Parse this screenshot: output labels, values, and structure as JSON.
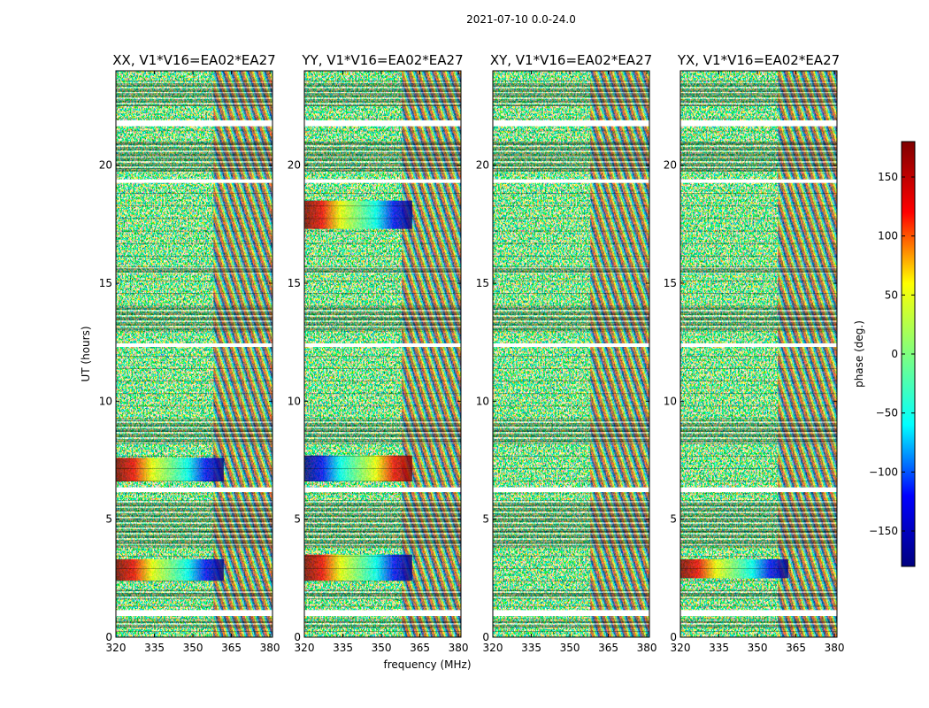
{
  "chart_data": {
    "type": "heatmap",
    "suptitle": "2021-07-10 0.0-24.0",
    "xlabel": "frequency (MHz)",
    "ylabel": "UT (hours)",
    "xlim": [
      320,
      381
    ],
    "ylim": [
      0,
      24
    ],
    "x_ticks": [
      320,
      335,
      350,
      365,
      380
    ],
    "y_ticks": [
      0,
      5,
      10,
      15,
      20
    ],
    "panels": [
      {
        "title": "XX, V1*V16=EA02*EA27"
      },
      {
        "title": "YY, V1*V16=EA02*EA27"
      },
      {
        "title": "XY, V1*V16=EA02*EA27"
      },
      {
        "title": "YX, V1*V16=EA02*EA27"
      }
    ],
    "colorbar": {
      "label": "phase (deg.)",
      "range": [
        -180,
        180
      ],
      "ticks": [
        150,
        100,
        50,
        0,
        -50,
        -100,
        -150
      ],
      "colormap": "jet",
      "colors": [
        "#00007f",
        "#0000ff",
        "#00ffff",
        "#7fff7f",
        "#ffff00",
        "#ff0000",
        "#7f0000"
      ]
    },
    "gaps_hours": [
      [
        0.9,
        1.15
      ],
      [
        6.15,
        6.35
      ],
      [
        12.3,
        12.45
      ],
      [
        19.25,
        19.4
      ],
      [
        21.65,
        21.9
      ]
    ]
  }
}
